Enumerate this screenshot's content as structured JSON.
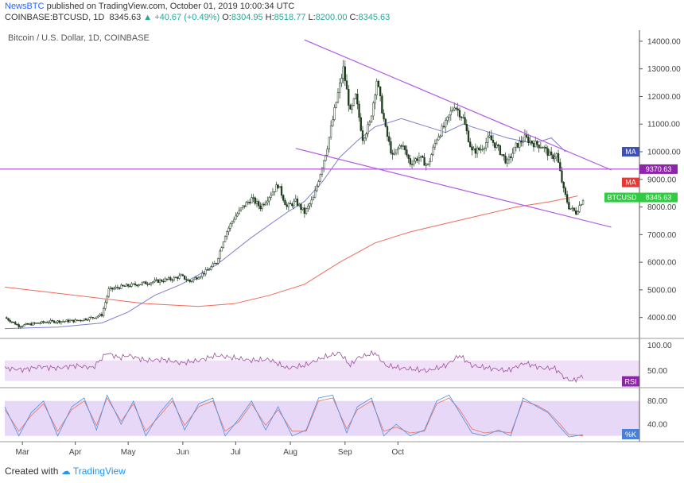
{
  "header": {
    "brand": "NewsBTC",
    "published": " published on TradingView.com, October 01, 2019 10:00:34 UTC",
    "symbol": "COINBASE:BTCUSD, 1D",
    "price": "8345.63",
    "change": "▲ +40.67 (+0.49%)",
    "o_label": "O:",
    "o_value": "8304.95",
    "h_label": "H:",
    "h_value": "8518.77",
    "l_label": "L:",
    "l_value": "8200.00",
    "c_label": "C:",
    "c_value": "8345.63"
  },
  "pane_title": "Bitcoin / U.S. Dollar, 1D, COINBASE",
  "footer": {
    "created": "Created with",
    "brand": "TradingView"
  },
  "colors": {
    "up": "#26a69a",
    "down": "#ef5350",
    "candle": "#1e3b1e",
    "ma_short": "#7f7fcc",
    "ma_long": "#f06a5a",
    "channel": "#b05ae6",
    "rsi": "#9e4f9e",
    "stoch_k": "#4a90e2",
    "stoch_d": "#e87060"
  },
  "chart_data": {
    "type": "candlestick",
    "title": "Bitcoin / U.S. Dollar, 1D, COINBASE",
    "y_ticks": [
      4000,
      5000,
      6000,
      7000,
      8000,
      9000,
      10000,
      11000,
      12000,
      13000,
      14000
    ],
    "y_tick_labels": [
      "4000.00",
      "5000.00",
      "6000.00",
      "7000.00",
      "8000.00",
      "9000.00",
      "10000.00",
      "11000.00",
      "12000.00",
      "13000.00",
      "14000.00"
    ],
    "ylim": [
      3300,
      14400
    ],
    "x_labels": [
      "Mar",
      "Apr",
      "May",
      "Jun",
      "Jul",
      "Aug",
      "Sep",
      "Oct"
    ],
    "price_path": [
      [
        0,
        4000
      ],
      [
        8,
        3700
      ],
      [
        25,
        3850
      ],
      [
        40,
        3880
      ],
      [
        50,
        4000
      ],
      [
        55,
        4100
      ],
      [
        59,
        5000
      ],
      [
        65,
        5100
      ],
      [
        75,
        5200
      ],
      [
        85,
        5300
      ],
      [
        95,
        5400
      ],
      [
        100,
        5500
      ],
      [
        105,
        5300
      ],
      [
        115,
        5700
      ],
      [
        120,
        6000
      ],
      [
        125,
        7000
      ],
      [
        130,
        7600
      ],
      [
        135,
        8000
      ],
      [
        140,
        8300
      ],
      [
        145,
        8000
      ],
      [
        150,
        8400
      ],
      [
        155,
        8800
      ],
      [
        160,
        8000
      ],
      [
        165,
        8200
      ],
      [
        170,
        7800
      ],
      [
        175,
        8300
      ],
      [
        178,
        9000
      ],
      [
        183,
        10200
      ],
      [
        188,
        11800
      ],
      [
        192,
        13000
      ],
      [
        196,
        11400
      ],
      [
        199,
        12000
      ],
      [
        203,
        10500
      ],
      [
        207,
        11000
      ],
      [
        211,
        12600
      ],
      [
        216,
        10800
      ],
      [
        220,
        9800
      ],
      [
        225,
        10300
      ],
      [
        230,
        9600
      ],
      [
        235,
        9800
      ],
      [
        240,
        9500
      ],
      [
        245,
        10500
      ],
      [
        250,
        11000
      ],
      [
        255,
        11700
      ],
      [
        260,
        11200
      ],
      [
        265,
        10000
      ],
      [
        270,
        10100
      ],
      [
        275,
        10500
      ],
      [
        280,
        10100
      ],
      [
        285,
        9600
      ],
      [
        290,
        10200
      ],
      [
        295,
        10500
      ],
      [
        300,
        10300
      ],
      [
        305,
        10200
      ],
      [
        310,
        9800
      ],
      [
        313,
        9900
      ],
      [
        317,
        8600
      ],
      [
        320,
        8000
      ],
      [
        324,
        7800
      ],
      [
        328,
        8300
      ]
    ],
    "ma_short_path": [
      [
        0,
        3600
      ],
      [
        30,
        3650
      ],
      [
        55,
        3800
      ],
      [
        70,
        4200
      ],
      [
        85,
        4800
      ],
      [
        100,
        5200
      ],
      [
        120,
        5900
      ],
      [
        140,
        6900
      ],
      [
        160,
        7800
      ],
      [
        170,
        8200
      ],
      [
        180,
        8900
      ],
      [
        190,
        9800
      ],
      [
        200,
        10400
      ],
      [
        210,
        10900
      ],
      [
        225,
        11200
      ],
      [
        240,
        10900
      ],
      [
        250,
        10700
      ],
      [
        260,
        11000
      ],
      [
        270,
        10800
      ],
      [
        285,
        10500
      ],
      [
        300,
        10300
      ],
      [
        310,
        10500
      ],
      [
        318,
        10000
      ]
    ],
    "ma_long_path": [
      [
        0,
        5100
      ],
      [
        40,
        4800
      ],
      [
        80,
        4500
      ],
      [
        110,
        4400
      ],
      [
        130,
        4500
      ],
      [
        150,
        4800
      ],
      [
        170,
        5200
      ],
      [
        190,
        6000
      ],
      [
        210,
        6700
      ],
      [
        230,
        7100
      ],
      [
        250,
        7400
      ],
      [
        270,
        7700
      ],
      [
        290,
        8000
      ],
      [
        310,
        8200
      ],
      [
        325,
        8400
      ]
    ],
    "channel_upper": [
      [
        170,
        14050
      ],
      [
        344,
        9340
      ]
    ],
    "channel_lower": [
      [
        165,
        10120
      ],
      [
        344,
        7270
      ]
    ],
    "horizontal_line": {
      "value": 9370.63
    },
    "price_tags": [
      {
        "name": "MA",
        "value": 10000,
        "color": "#3f51b5"
      },
      {
        "name": "9370.63",
        "value": 9370.63,
        "color": "#8e24aa"
      },
      {
        "name": "MA",
        "value": 8890,
        "color": "#e53935"
      },
      {
        "name": "BTCUSD",
        "value": 8345.63,
        "color": "#2ecc40",
        "label": "8345.63"
      }
    ],
    "rsi": {
      "y_ticks": [
        50,
        100
      ],
      "y_tick_labels": [
        "50.00",
        "100.00"
      ],
      "ylim": [
        20,
        110
      ],
      "band": [
        30,
        70
      ],
      "tag": "RSI",
      "values_path": [
        [
          0,
          55
        ],
        [
          10,
          52
        ],
        [
          20,
          58
        ],
        [
          30,
          55
        ],
        [
          40,
          60
        ],
        [
          50,
          56
        ],
        [
          58,
          85
        ],
        [
          65,
          75
        ],
        [
          70,
          80
        ],
        [
          80,
          70
        ],
        [
          90,
          72
        ],
        [
          100,
          65
        ],
        [
          110,
          70
        ],
        [
          120,
          80
        ],
        [
          130,
          75
        ],
        [
          140,
          70
        ],
        [
          150,
          72
        ],
        [
          160,
          55
        ],
        [
          170,
          60
        ],
        [
          180,
          75
        ],
        [
          190,
          85
        ],
        [
          196,
          60
        ],
        [
          200,
          75
        ],
        [
          210,
          85
        ],
        [
          216,
          60
        ],
        [
          225,
          55
        ],
        [
          240,
          50
        ],
        [
          250,
          60
        ],
        [
          258,
          80
        ],
        [
          265,
          60
        ],
        [
          275,
          55
        ],
        [
          285,
          50
        ],
        [
          295,
          65
        ],
        [
          305,
          55
        ],
        [
          312,
          55
        ],
        [
          318,
          35
        ],
        [
          322,
          30
        ],
        [
          328,
          40
        ]
      ]
    },
    "stoch": {
      "y_ticks": [
        40,
        80
      ],
      "y_tick_labels": [
        "40.00",
        "80.00"
      ],
      "ylim": [
        10,
        100
      ],
      "band": [
        20,
        80
      ],
      "tag": "%K",
      "k_path": [
        [
          0,
          70
        ],
        [
          8,
          20
        ],
        [
          15,
          60
        ],
        [
          22,
          80
        ],
        [
          30,
          20
        ],
        [
          38,
          70
        ],
        [
          45,
          85
        ],
        [
          52,
          30
        ],
        [
          58,
          90
        ],
        [
          66,
          40
        ],
        [
          73,
          80
        ],
        [
          80,
          20
        ],
        [
          88,
          60
        ],
        [
          95,
          85
        ],
        [
          102,
          30
        ],
        [
          110,
          75
        ],
        [
          118,
          85
        ],
        [
          125,
          20
        ],
        [
          133,
          50
        ],
        [
          140,
          80
        ],
        [
          148,
          30
        ],
        [
          155,
          70
        ],
        [
          163,
          20
        ],
        [
          171,
          30
        ],
        [
          178,
          85
        ],
        [
          186,
          90
        ],
        [
          194,
          25
        ],
        [
          200,
          70
        ],
        [
          208,
          85
        ],
        [
          215,
          20
        ],
        [
          222,
          40
        ],
        [
          230,
          20
        ],
        [
          238,
          30
        ],
        [
          245,
          80
        ],
        [
          252,
          90
        ],
        [
          258,
          60
        ],
        [
          265,
          25
        ],
        [
          272,
          20
        ],
        [
          280,
          30
        ],
        [
          287,
          20
        ],
        [
          294,
          85
        ],
        [
          302,
          70
        ],
        [
          308,
          60
        ],
        [
          315,
          35
        ],
        [
          320,
          18
        ],
        [
          328,
          22
        ]
      ],
      "d_path": [
        [
          0,
          65
        ],
        [
          8,
          28
        ],
        [
          15,
          55
        ],
        [
          22,
          75
        ],
        [
          30,
          28
        ],
        [
          38,
          65
        ],
        [
          45,
          80
        ],
        [
          52,
          38
        ],
        [
          58,
          85
        ],
        [
          66,
          45
        ],
        [
          73,
          75
        ],
        [
          80,
          28
        ],
        [
          88,
          55
        ],
        [
          95,
          80
        ],
        [
          102,
          38
        ],
        [
          110,
          70
        ],
        [
          118,
          80
        ],
        [
          125,
          28
        ],
        [
          133,
          45
        ],
        [
          140,
          75
        ],
        [
          148,
          38
        ],
        [
          155,
          65
        ],
        [
          163,
          28
        ],
        [
          171,
          28
        ],
        [
          178,
          80
        ],
        [
          186,
          85
        ],
        [
          194,
          32
        ],
        [
          200,
          65
        ],
        [
          208,
          80
        ],
        [
          215,
          28
        ],
        [
          222,
          35
        ],
        [
          230,
          25
        ],
        [
          238,
          28
        ],
        [
          245,
          75
        ],
        [
          252,
          85
        ],
        [
          258,
          65
        ],
        [
          265,
          32
        ],
        [
          272,
          25
        ],
        [
          280,
          28
        ],
        [
          287,
          25
        ],
        [
          294,
          80
        ],
        [
          302,
          72
        ],
        [
          308,
          62
        ],
        [
          315,
          40
        ],
        [
          320,
          22
        ],
        [
          328,
          20
        ]
      ]
    }
  }
}
